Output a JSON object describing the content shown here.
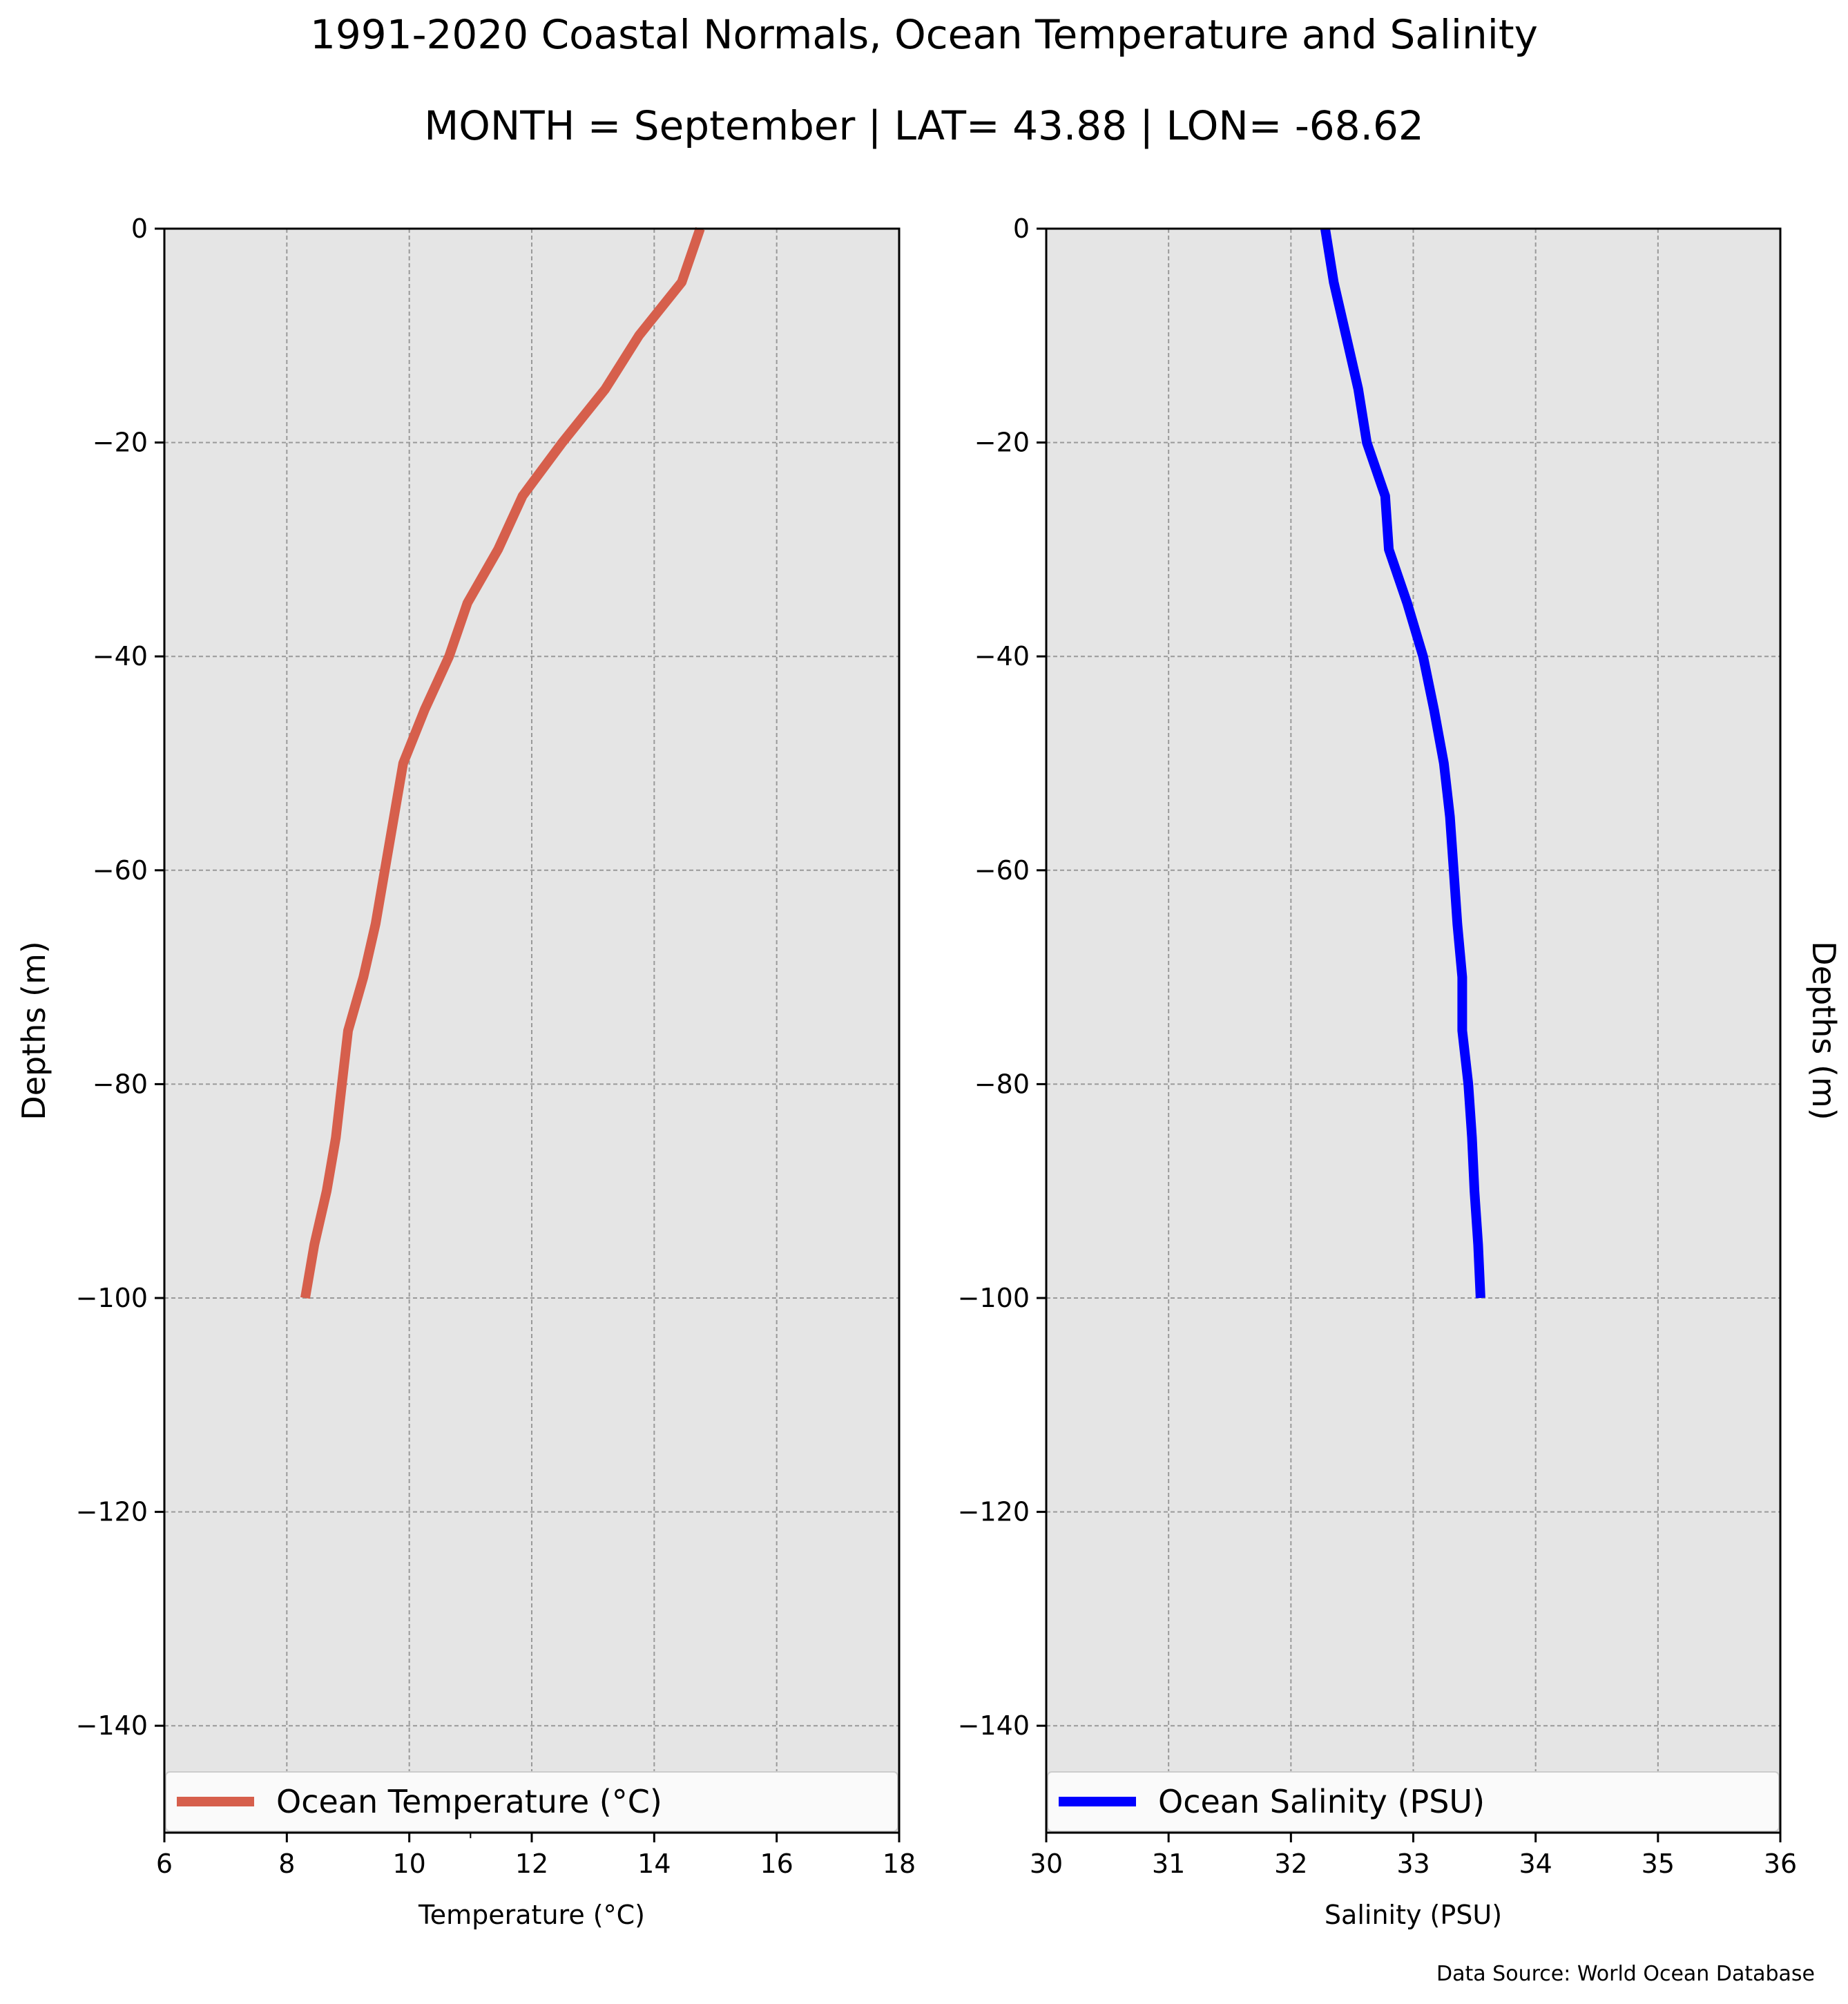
{
  "title": "1991-2020 Coastal Normals, Ocean Temperature and Salinity",
  "subtitle": "MONTH = September | LAT= 43.88 | LON= -68.62",
  "source_note": "Data Source: World Ocean Database",
  "colors": {
    "panel_bg": "#e5e5e5",
    "temperature": "#d65f4c",
    "salinity": "#0000ff",
    "grid": "#9a9a9a"
  },
  "chart_data": [
    {
      "type": "line",
      "xlabel": "Temperature ($^\\circ$C)",
      "xlabel_display": "Temperature (°C)",
      "ylabel": "Depths (m)",
      "xlim": [
        6,
        18
      ],
      "ylim": [
        -150,
        0
      ],
      "xticks": [
        "6",
        "8",
        "10",
        "12",
        "14",
        "16",
        "18"
      ],
      "yticks": [
        "0",
        "−20",
        "−40",
        "−60",
        "−80",
        "−100",
        "−120",
        "−140"
      ],
      "grid": true,
      "legend_position": "bottom",
      "series": [
        {
          "name": "Ocean Temperature (°C)",
          "color": "#d65f4c",
          "x": [
            14.75,
            14.45,
            13.75,
            13.2,
            12.5,
            11.85,
            11.45,
            10.95,
            10.65,
            10.25,
            9.9,
            9.75,
            9.6,
            9.45,
            9.25,
            9.0,
            8.9,
            8.8,
            8.65,
            8.45,
            8.3
          ],
          "y": [
            0,
            -5,
            -10,
            -15,
            -20,
            -25,
            -30,
            -35,
            -40,
            -45,
            -50,
            -55,
            -60,
            -65,
            -70,
            -75,
            -80,
            -85,
            -90,
            -95,
            -100
          ]
        }
      ]
    },
    {
      "type": "line",
      "xlabel": "Salinity (PSU)",
      "ylabel": "Depths (m)",
      "xlim": [
        30,
        36
      ],
      "ylim": [
        -150,
        0
      ],
      "xticks": [
        "30",
        "31",
        "32",
        "33",
        "34",
        "35",
        "36"
      ],
      "yticks": [
        "0",
        "−20",
        "−40",
        "−60",
        "−80",
        "−100",
        "−120",
        "−140"
      ],
      "grid": true,
      "legend_position": "bottom",
      "series": [
        {
          "name": "Ocean Salinity (PSU)",
          "color": "#0000ff",
          "x": [
            32.28,
            32.35,
            32.45,
            32.55,
            32.62,
            32.77,
            32.8,
            32.95,
            33.08,
            33.17,
            33.25,
            33.3,
            33.33,
            33.36,
            33.4,
            33.4,
            33.45,
            33.48,
            33.5,
            33.53,
            33.55
          ],
          "y": [
            0,
            -5,
            -10,
            -15,
            -20,
            -25,
            -30,
            -35,
            -40,
            -45,
            -50,
            -55,
            -60,
            -65,
            -70,
            -75,
            -80,
            -85,
            -90,
            -95,
            -100
          ]
        }
      ]
    }
  ]
}
